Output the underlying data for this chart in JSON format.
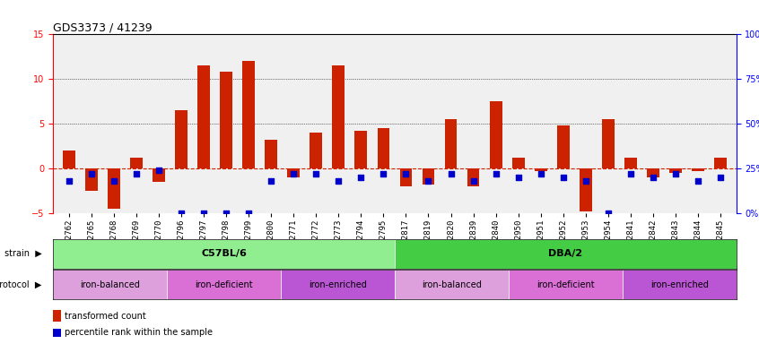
{
  "title": "GDS3373 / 41239",
  "samples": [
    "GSM262762",
    "GSM262765",
    "GSM262768",
    "GSM262769",
    "GSM262770",
    "GSM262796",
    "GSM262797",
    "GSM262798",
    "GSM262799",
    "GSM262800",
    "GSM262771",
    "GSM262772",
    "GSM262773",
    "GSM262794",
    "GSM262795",
    "GSM262817",
    "GSM262819",
    "GSM262820",
    "GSM262839",
    "GSM262840",
    "GSM262950",
    "GSM262951",
    "GSM262952",
    "GSM262953",
    "GSM262954",
    "GSM262841",
    "GSM262842",
    "GSM262843",
    "GSM262844",
    "GSM262845"
  ],
  "transformed_count": [
    2.0,
    -2.5,
    -4.5,
    1.2,
    -1.5,
    6.5,
    11.5,
    10.8,
    12.0,
    3.2,
    -1.0,
    4.0,
    11.5,
    4.2,
    4.5,
    -2.0,
    -1.8,
    5.5,
    -2.0,
    7.5,
    1.2,
    -0.3,
    4.8,
    -4.8,
    5.5,
    1.2,
    -1.0,
    -0.5,
    -0.3,
    1.2
  ],
  "percentile_rank": [
    18,
    22,
    18,
    22,
    24,
    0,
    0,
    0,
    0,
    18,
    22,
    22,
    18,
    20,
    22,
    22,
    18,
    22,
    18,
    22,
    20,
    22,
    20,
    18,
    0,
    22,
    20,
    22,
    18,
    20
  ],
  "strain_groups": [
    {
      "label": "C57BL/6",
      "start": 0,
      "end": 15,
      "color": "#90EE90"
    },
    {
      "label": "DBA/2",
      "start": 15,
      "end": 30,
      "color": "#44CC44"
    }
  ],
  "protocol_groups": [
    {
      "label": "iron-balanced",
      "start": 0,
      "end": 5,
      "color": "#DDA0DD"
    },
    {
      "label": "iron-deficient",
      "start": 5,
      "end": 10,
      "color": "#DA70D6"
    },
    {
      "label": "iron-enriched",
      "start": 10,
      "end": 15,
      "color": "#BA55D3"
    },
    {
      "label": "iron-balanced",
      "start": 15,
      "end": 20,
      "color": "#DDA0DD"
    },
    {
      "label": "iron-deficient",
      "start": 20,
      "end": 25,
      "color": "#DA70D6"
    },
    {
      "label": "iron-enriched",
      "start": 25,
      "end": 30,
      "color": "#BA55D3"
    }
  ],
  "ylim_left": [
    -5,
    15
  ],
  "ylim_right": [
    0,
    100
  ],
  "bar_color": "#CC2200",
  "dot_color": "#0000CC",
  "zero_line_color": "#CC2200",
  "grid_color": "#000000",
  "bg_color": "#FFFFFF",
  "tick_label_size": 6.5,
  "bar_width": 0.55,
  "dot_size": 18
}
